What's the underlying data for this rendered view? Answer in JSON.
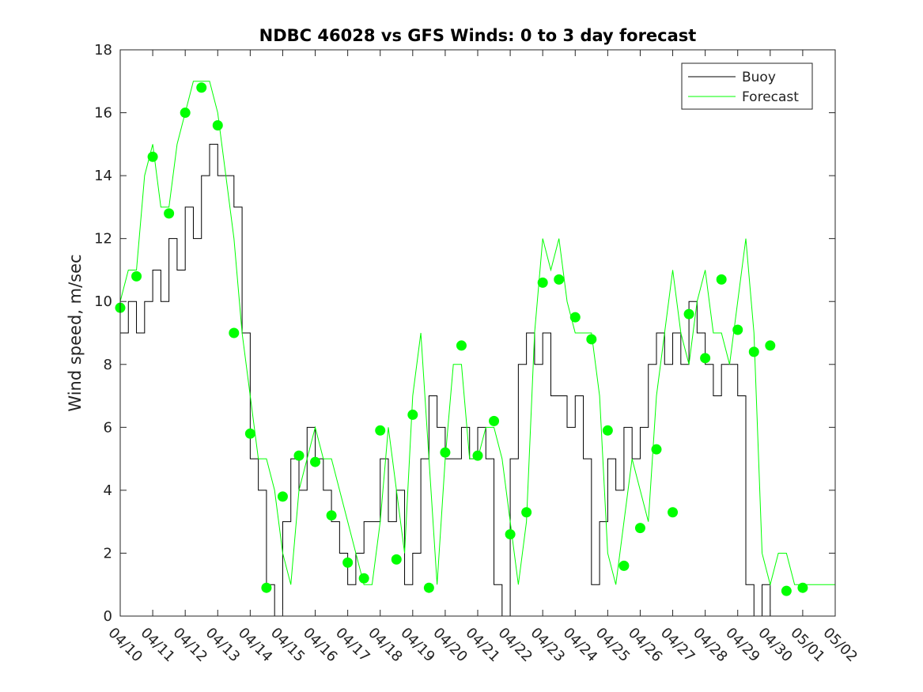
{
  "chart_data": {
    "type": "line",
    "title": "NDBC 46028 vs GFS Winds: 0 to 3 day forecast",
    "xlabel": "",
    "ylabel": "Wind speed, m/sec",
    "xlim": [
      0,
      22
    ],
    "ylim": [
      0,
      18
    ],
    "yticks": [
      0,
      2,
      4,
      6,
      8,
      10,
      12,
      14,
      16,
      18
    ],
    "xtick_labels": [
      "04/10",
      "04/11",
      "04/12",
      "04/13",
      "04/14",
      "04/15",
      "04/16",
      "04/17",
      "04/18",
      "04/19",
      "04/20",
      "04/21",
      "04/22",
      "04/23",
      "04/24",
      "04/25",
      "04/26",
      "04/27",
      "04/28",
      "04/29",
      "04/30",
      "05/01",
      "05/02"
    ],
    "legend": {
      "position": "top-right",
      "entries": [
        "Buoy",
        "Forecast"
      ]
    },
    "colors": {
      "buoy": "#000000",
      "forecast": "#00ff00"
    },
    "series": [
      {
        "name": "Buoy",
        "style": "step",
        "x": [
          0.0,
          0.25,
          0.5,
          0.75,
          1.0,
          1.25,
          1.5,
          1.75,
          2.0,
          2.25,
          2.5,
          2.75,
          3.0,
          3.25,
          3.5,
          3.75,
          4.0,
          4.25,
          4.5,
          4.75,
          5.0,
          5.25,
          5.5,
          5.75,
          6.0,
          6.25,
          6.5,
          6.75,
          7.0,
          7.25,
          7.5,
          7.75,
          8.0,
          8.25,
          8.5,
          8.75,
          9.0,
          9.25,
          9.5,
          9.75,
          10.0,
          10.25,
          10.5,
          10.75,
          11.0,
          11.25,
          11.5,
          11.75,
          12.0,
          12.25,
          12.5,
          12.75,
          13.0,
          13.25,
          13.5,
          13.75,
          14.0,
          14.25,
          14.5,
          14.75,
          15.0,
          15.25,
          15.5,
          15.75,
          16.0,
          16.25,
          16.5,
          16.75,
          17.0,
          17.25,
          17.5,
          17.75,
          18.0,
          18.25,
          18.5,
          18.75,
          19.0,
          19.25,
          19.5,
          19.75,
          20.0,
          20.25,
          20.5,
          20.75,
          21.0,
          21.25,
          21.5,
          21.75,
          22.0
        ],
        "values": [
          9,
          10,
          9,
          10,
          11,
          10,
          12,
          11,
          13,
          12,
          14,
          15,
          14,
          14,
          13,
          9,
          5,
          4,
          1,
          0,
          3,
          5,
          4,
          6,
          5,
          4,
          3,
          2,
          1,
          2,
          3,
          3,
          5,
          3,
          4,
          1,
          2,
          5,
          7,
          6,
          5,
          5,
          6,
          5,
          6,
          5,
          1,
          0,
          5,
          8,
          9,
          8,
          9,
          7,
          7,
          6,
          7,
          5,
          1,
          3,
          5,
          4,
          6,
          5,
          6,
          8,
          9,
          8,
          9,
          8,
          10,
          9,
          8,
          7,
          8,
          8,
          7,
          1,
          0,
          1,
          0,
          0,
          0,
          0,
          0,
          0,
          0,
          0,
          0
        ]
      },
      {
        "name": "Forecast",
        "style": "line",
        "x": [
          0.0,
          0.25,
          0.5,
          0.75,
          1.0,
          1.25,
          1.5,
          1.75,
          2.0,
          2.25,
          2.5,
          2.75,
          3.0,
          3.25,
          3.5,
          3.75,
          4.0,
          4.25,
          4.5,
          4.75,
          5.0,
          5.25,
          5.5,
          5.75,
          6.0,
          6.25,
          6.5,
          6.75,
          7.0,
          7.25,
          7.5,
          7.75,
          8.0,
          8.25,
          8.5,
          8.75,
          9.0,
          9.25,
          9.5,
          9.75,
          10.0,
          10.25,
          10.5,
          10.75,
          11.0,
          11.25,
          11.5,
          11.75,
          12.0,
          12.25,
          12.5,
          12.75,
          13.0,
          13.25,
          13.5,
          13.75,
          14.0,
          14.25,
          14.5,
          14.75,
          15.0,
          15.25,
          15.5,
          15.75,
          16.0,
          16.25,
          16.5,
          16.75,
          17.0,
          17.25,
          17.5,
          17.75,
          18.0,
          18.25,
          18.5,
          18.75,
          19.0,
          19.25,
          19.5,
          19.75,
          20.0,
          20.25,
          20.5,
          20.75,
          21.0,
          21.25,
          21.5,
          21.75,
          22.0
        ],
        "values": [
          10,
          11,
          11,
          14,
          15,
          13,
          13,
          15,
          16,
          17,
          17,
          17,
          16,
          14,
          12,
          9,
          7,
          5,
          5,
          4,
          2,
          1,
          4,
          5,
          6,
          5,
          5,
          4,
          3,
          2,
          1,
          1,
          3,
          6,
          4,
          2,
          7,
          9,
          5,
          1,
          5,
          8,
          8,
          5,
          5,
          6,
          6,
          5,
          3,
          1,
          3,
          9,
          12,
          11,
          12,
          10,
          9,
          9,
          9,
          7,
          2,
          1,
          3,
          5,
          4,
          3,
          7,
          9,
          11,
          9,
          8,
          10,
          11,
          9,
          9,
          8,
          10,
          12,
          9,
          2,
          1,
          2,
          2,
          1,
          1,
          1,
          1,
          1,
          1
        ]
      },
      {
        "name": "Forecast",
        "style": "points",
        "x": [
          0.0,
          0.5,
          1.0,
          1.5,
          2.0,
          2.5,
          3.0,
          3.5,
          4.0,
          4.5,
          5.0,
          5.5,
          6.0,
          6.5,
          7.0,
          7.5,
          8.0,
          8.5,
          9.0,
          9.5,
          10.0,
          10.5,
          11.0,
          11.5,
          12.0,
          12.5,
          13.0,
          13.5,
          14.0,
          14.5,
          15.0,
          15.5,
          16.0,
          16.5,
          17.0,
          17.5,
          18.0,
          18.5,
          19.0,
          19.5,
          20.0,
          20.5,
          21.0
        ],
        "values": [
          9.8,
          10.8,
          14.6,
          12.8,
          16.0,
          16.8,
          15.6,
          9.0,
          5.8,
          0.9,
          3.8,
          5.1,
          4.9,
          3.2,
          1.7,
          1.2,
          5.9,
          1.8,
          6.4,
          0.9,
          5.2,
          8.6,
          5.1,
          6.2,
          2.6,
          3.3,
          10.6,
          10.7,
          9.5,
          8.8,
          5.9,
          1.6,
          2.8,
          5.3,
          3.3,
          9.6,
          8.2,
          10.7,
          9.1,
          8.4,
          8.6,
          0.8,
          0.9
        ]
      }
    ]
  }
}
